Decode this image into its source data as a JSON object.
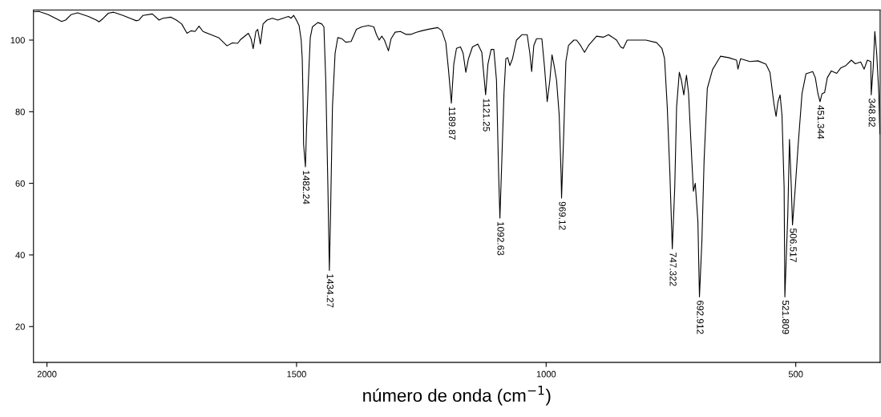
{
  "chart_data": {
    "type": "line",
    "xlabel": "número de onda (cm$^{−1}$)",
    "xlim": [
      2027,
      331
    ],
    "xticks": [
      2000,
      1500,
      1000,
      500
    ],
    "ylim": [
      10,
      108.4
    ],
    "yticks": [
      20,
      40,
      60,
      80,
      100
    ],
    "grid": false,
    "marker": "none",
    "line_style": "solid",
    "series": [
      {
        "color": "#000000",
        "x": [
          2026.7,
          2016.0,
          1997.3,
          1970.6,
          1962.6,
          1951.9,
          1938.5,
          1917.1,
          1901.1,
          1895.8,
          1887.8,
          1877.1,
          1866.4,
          1847.7,
          1831.6,
          1821.0,
          1815.6,
          1807.6,
          1788.9,
          1775.5,
          1767.5,
          1751.5,
          1740.8,
          1730.1,
          1719.4,
          1711.4,
          1703.4,
          1695.4,
          1687.4,
          1671.3,
          1655.3,
          1639.3,
          1628.6,
          1617.9,
          1612.5,
          1596.5,
          1591.2,
          1586.9,
          1581.5,
          1577.8,
          1572.5,
          1567.1,
          1559.1,
          1548.4,
          1537.7,
          1527.0,
          1516.3,
          1511.0,
          1505.7,
          1500.3,
          1495.0,
          1490.7,
          1488.6,
          1487.0,
          1485.9,
          1482.24,
          1480.0,
          1476.2,
          1472.5,
          1468.2,
          1457.5,
          1449.5,
          1445.2,
          1441.5,
          1437.2,
          1434.27,
          1431.9,
          1428.1,
          1422.8,
          1417.4,
          1409.4,
          1401.4,
          1390.7,
          1380.0,
          1369.3,
          1356.0,
          1345.3,
          1339.9,
          1334.6,
          1329.3,
          1323.9,
          1315.9,
          1310.6,
          1302.5,
          1291.9,
          1281.2,
          1270.5,
          1259.8,
          1249.1,
          1233.1,
          1217.0,
          1209.0,
          1201.0,
          1195.7,
          1189.87,
          1185.0,
          1179.6,
          1171.6,
          1166.3,
          1160.9,
          1155.6,
          1147.6,
          1136.9,
          1128.9,
          1121.25,
          1116.6,
          1110.2,
          1104.8,
          1099.5,
          1095.2,
          1092.63,
          1088.8,
          1084.5,
          1080.8,
          1077.0,
          1072.8,
          1067.4,
          1059.4,
          1048.7,
          1038.0,
          1032.7,
          1029.0,
          1024.7,
          1019.3,
          1008.6,
          1003.3,
          997.9,
          992.6,
          988.3,
          984.6,
          979.2,
          973.9,
          970.1,
          969.12,
          964.8,
          960.5,
          955.2,
          944.5,
          939.1,
          931.1,
          923.1,
          915.1,
          899.0,
          885.7,
          875.0,
          858.9,
          850.9,
          845.6,
          837.6,
          821.5,
          800.2,
          778.8,
          768.1,
          762.8,
          757.4,
          752.1,
          747.322,
          742.4,
          738.7,
          733.3,
          729.1,
          724.3,
          718.9,
          714.7,
          708.2,
          705.0,
          701.3,
          696.0,
          692.912,
          688.0,
          683.6,
          677.2,
          666.6,
          650.5,
          634.5,
          618.5,
          615.8,
          610.5,
          591.7,
          575.7,
          559.7,
          551.7,
          543.6,
          539.4,
          535.6,
          531.4,
          527.6,
          523.3,
          521.809,
          515.9,
          512.6,
          508.9,
          506.517,
          500.9,
          495.5,
          487.5,
          479.5,
          466.1,
          460.8,
          455.5,
          451.344,
          447.4,
          442.1,
          436.8,
          428.7,
          418.0,
          410.0,
          399.4,
          388.7,
          380.6,
          370.0,
          363.0,
          356.6,
          349.7,
          348.82,
          344.8,
          341.6,
          337.9,
          333.6,
          331.5
        ],
        "values": [
          107.9,
          108.0,
          107.1,
          105.2,
          105.6,
          107.1,
          107.6,
          106.6,
          105.6,
          105.1,
          106.0,
          107.5,
          107.8,
          106.9,
          106.0,
          105.4,
          105.6,
          106.9,
          107.3,
          105.6,
          106.1,
          106.4,
          105.6,
          104.5,
          101.9,
          102.6,
          102.4,
          103.9,
          102.4,
          101.5,
          100.6,
          98.4,
          99.2,
          99.1,
          100.1,
          101.9,
          100.4,
          97.6,
          102.4,
          103.0,
          98.9,
          104.5,
          105.6,
          106.1,
          105.6,
          106.1,
          106.6,
          106.1,
          106.9,
          105.6,
          104.1,
          100.0,
          94.8,
          83.6,
          70.9,
          64.6,
          75.3,
          88.8,
          100.7,
          103.7,
          104.9,
          104.5,
          103.7,
          88.8,
          58.9,
          35.7,
          51.4,
          81.3,
          96.3,
          100.7,
          100.4,
          99.4,
          99.6,
          103.0,
          103.7,
          104.1,
          103.7,
          101.5,
          100.0,
          101.1,
          100.0,
          97.0,
          100.4,
          102.2,
          102.4,
          101.6,
          101.6,
          102.2,
          102.6,
          103.1,
          103.5,
          102.6,
          99.3,
          91.8,
          82.4,
          93.3,
          97.7,
          98.1,
          96.3,
          91.0,
          94.8,
          98.1,
          98.9,
          96.6,
          84.7,
          93.3,
          97.4,
          97.4,
          88.8,
          62.6,
          50.3,
          66.4,
          85.1,
          94.8,
          95.1,
          92.9,
          94.8,
          100.0,
          101.5,
          101.5,
          96.3,
          91.2,
          98.5,
          100.4,
          100.4,
          92.5,
          82.8,
          88.8,
          95.9,
          93.3,
          88.8,
          79.1,
          62.6,
          55.9,
          73.8,
          94.0,
          98.5,
          100.0,
          100.0,
          98.5,
          96.6,
          98.5,
          101.1,
          100.8,
          101.5,
          100.0,
          98.1,
          97.7,
          100.0,
          100.0,
          100.0,
          99.3,
          97.7,
          94.8,
          81.3,
          62.6,
          41.7,
          58.9,
          81.3,
          91.0,
          88.8,
          84.7,
          90.2,
          85.1,
          66.4,
          57.8,
          60.0,
          49.2,
          28.3,
          43.9,
          66.4,
          86.5,
          91.8,
          95.5,
          95.1,
          94.4,
          91.9,
          94.8,
          94.0,
          94.2,
          93.3,
          91.0,
          82.1,
          78.7,
          82.8,
          84.7,
          79.1,
          58.9,
          28.3,
          51.4,
          72.3,
          58.9,
          48.4,
          58.9,
          70.1,
          85.0,
          90.6,
          91.2,
          89.5,
          85.0,
          82.8,
          85.0,
          85.4,
          89.5,
          91.4,
          90.7,
          92.2,
          92.9,
          94.4,
          93.4,
          93.9,
          91.9,
          94.4,
          94.0,
          84.7,
          92.5,
          102.4,
          96.3,
          85.2,
          73.8
        ]
      }
    ],
    "annotations": [
      {
        "text": "1482.24",
        "x": 1482.24,
        "y": 64.6
      },
      {
        "text": "1434.27",
        "x": 1434.27,
        "y": 35.7
      },
      {
        "text": "1189.87",
        "x": 1189.87,
        "y": 82.4
      },
      {
        "text": "1121.25",
        "x": 1121.25,
        "y": 84.7
      },
      {
        "text": "1092.63",
        "x": 1092.63,
        "y": 50.3
      },
      {
        "text": "969.12",
        "x": 969.12,
        "y": 55.9
      },
      {
        "text": "747.322",
        "x": 747.322,
        "y": 41.7
      },
      {
        "text": "692.912",
        "x": 692.912,
        "y": 28.3
      },
      {
        "text": "521.809",
        "x": 521.809,
        "y": 28.3
      },
      {
        "text": "506.517",
        "x": 506.517,
        "y": 48.4
      },
      {
        "text": "451.344",
        "x": 451.344,
        "y": 82.8
      },
      {
        "text": "348.82",
        "x": 348.82,
        "y": 84.7
      }
    ]
  }
}
